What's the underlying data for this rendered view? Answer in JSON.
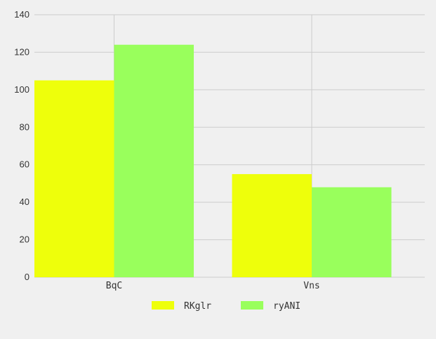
{
  "chart_data": {
    "type": "bar",
    "categories": [
      "BqC",
      "Vns"
    ],
    "series": [
      {
        "name": "RKglr",
        "values": [
          105,
          55
        ],
        "color": "#eeff0b"
      },
      {
        "name": "ryANI",
        "values": [
          124,
          48
        ],
        "color": "#99ff5c"
      }
    ],
    "ylim": [
      0,
      140
    ],
    "yticks": [
      0,
      20,
      40,
      60,
      80,
      100,
      120,
      140
    ],
    "grid": true,
    "legend_position": "bottom",
    "title": "",
    "xlabel": "",
    "ylabel": ""
  },
  "colors": {
    "background": "#f0f0f0",
    "grid": "#cccccc",
    "text": "#333333"
  }
}
